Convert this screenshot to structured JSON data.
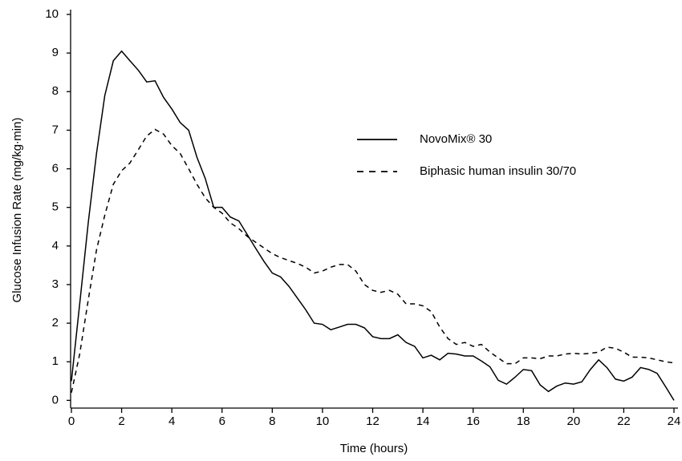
{
  "chart_data": {
    "type": "line",
    "x_label": "Time (hours)",
    "y_label": "Glucose Infusion Rate (mg/kg∙min)",
    "x": [
      0,
      0.33,
      0.67,
      1,
      1.33,
      1.67,
      2,
      2.33,
      2.67,
      3,
      3.33,
      3.67,
      4,
      4.33,
      4.67,
      5,
      5.33,
      5.67,
      6,
      6.33,
      6.67,
      7,
      7.33,
      7.67,
      8,
      8.33,
      8.67,
      9,
      9.33,
      9.67,
      10,
      10.33,
      10.67,
      11,
      11.33,
      11.67,
      12,
      12.33,
      12.67,
      13,
      13.33,
      13.67,
      14,
      14.33,
      14.67,
      15,
      15.33,
      15.67,
      16,
      16.33,
      16.67,
      17,
      17.33,
      17.67,
      18,
      18.33,
      18.67,
      19,
      19.33,
      19.67,
      20,
      20.33,
      20.67,
      21,
      21.33,
      21.67,
      22,
      22.33,
      22.67,
      23,
      23.33,
      23.67,
      24
    ],
    "series": [
      {
        "name": "NovoMix® 30",
        "color": "#000000",
        "line_style": "solid",
        "values": [
          0.5,
          2.5,
          4.6,
          6.4,
          7.9,
          8.8,
          9.05,
          8.8,
          8.55,
          8.25,
          8.28,
          7.85,
          7.55,
          7.2,
          7.0,
          6.3,
          5.75,
          5.0,
          5.0,
          4.75,
          4.65,
          4.3,
          3.95,
          3.6,
          3.3,
          3.2,
          2.95,
          2.65,
          2.35,
          2.0,
          1.97,
          1.83,
          1.9,
          1.97,
          1.97,
          1.88,
          1.65,
          1.6,
          1.6,
          1.7,
          1.5,
          1.4,
          1.1,
          1.17,
          1.05,
          1.22,
          1.2,
          1.15,
          1.15,
          1.02,
          0.87,
          0.52,
          0.42,
          0.6,
          0.8,
          0.77,
          0.4,
          0.23,
          0.37,
          0.45,
          0.42,
          0.48,
          0.8,
          1.05,
          0.85,
          0.55,
          0.5,
          0.6,
          0.85,
          0.8,
          0.7,
          0.35,
          0.0
        ]
      },
      {
        "name": "Biphasic human insulin 30/70",
        "color": "#000000",
        "line_style": "dashed",
        "values": [
          0.2,
          1.2,
          2.6,
          3.9,
          4.8,
          5.6,
          5.95,
          6.15,
          6.5,
          6.85,
          7.02,
          6.9,
          6.6,
          6.4,
          6.0,
          5.6,
          5.25,
          5.0,
          4.85,
          4.6,
          4.45,
          4.25,
          4.1,
          3.95,
          3.8,
          3.7,
          3.62,
          3.55,
          3.45,
          3.3,
          3.35,
          3.45,
          3.52,
          3.52,
          3.35,
          3.0,
          2.85,
          2.8,
          2.85,
          2.75,
          2.5,
          2.5,
          2.45,
          2.3,
          1.9,
          1.6,
          1.45,
          1.5,
          1.4,
          1.45,
          1.25,
          1.1,
          0.95,
          0.95,
          1.1,
          1.1,
          1.08,
          1.15,
          1.15,
          1.2,
          1.22,
          1.2,
          1.22,
          1.25,
          1.38,
          1.35,
          1.25,
          1.12,
          1.12,
          1.1,
          1.05,
          1.0,
          0.97
        ]
      }
    ],
    "xlim": [
      0,
      24
    ],
    "ylim": [
      -0.2,
      10
    ],
    "xticks": [
      0,
      2,
      4,
      6,
      8,
      10,
      12,
      14,
      16,
      18,
      20,
      22,
      24
    ],
    "yticks": [
      0,
      1,
      2,
      3,
      4,
      5,
      6,
      7,
      8,
      9,
      10
    ],
    "legend": "right",
    "grid": false
  }
}
